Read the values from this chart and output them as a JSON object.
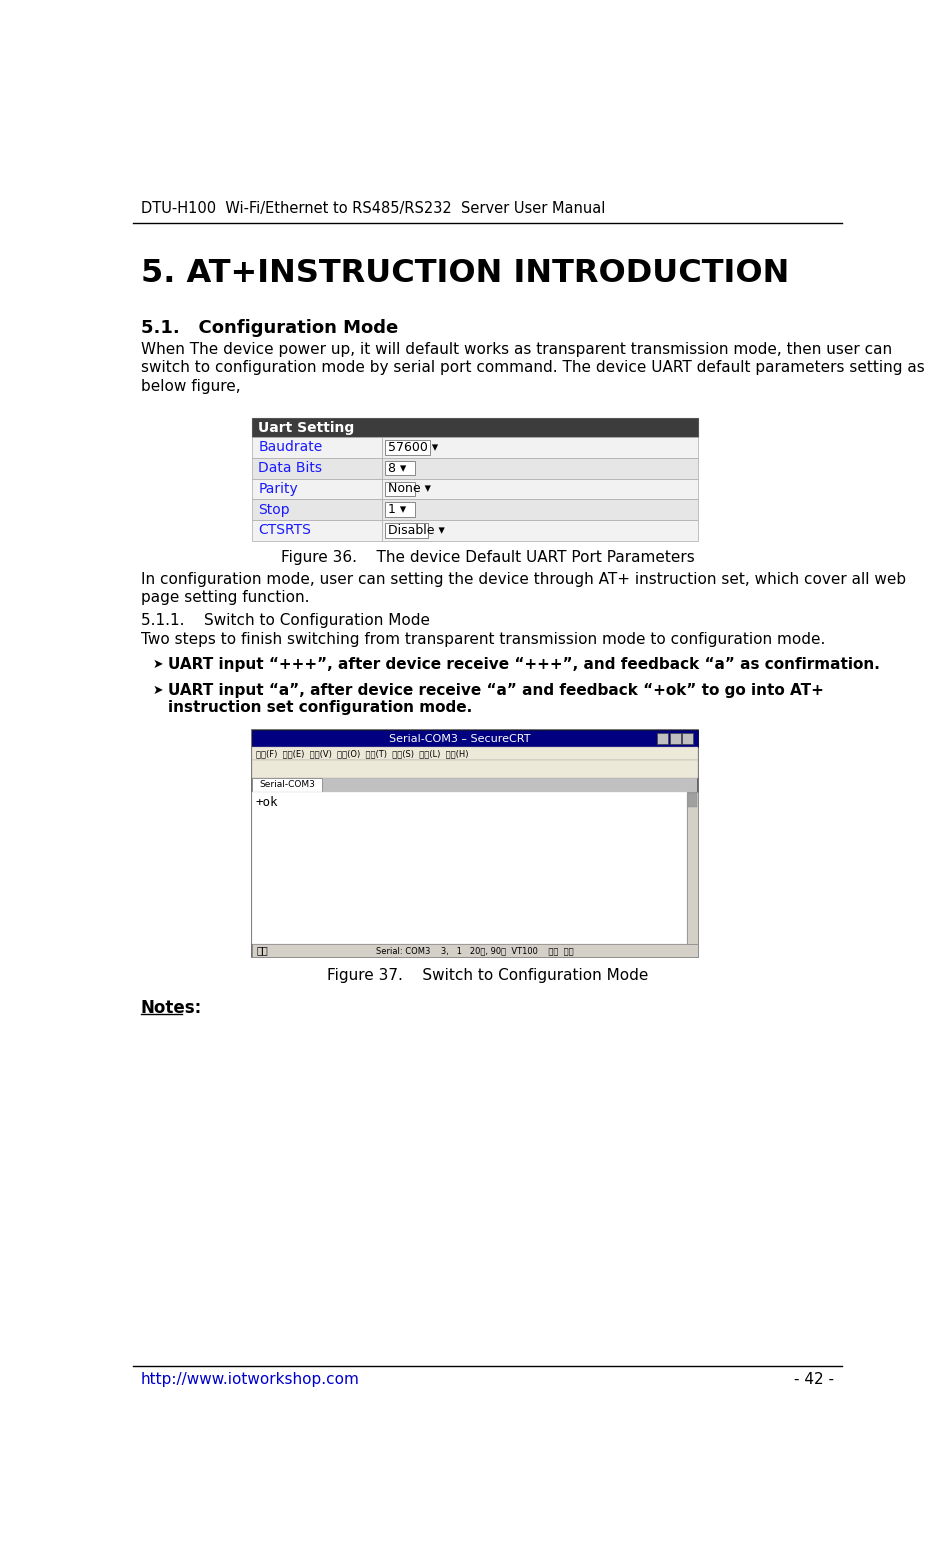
{
  "header_text": "DTU-H100  Wi-Fi/Ethernet to RS485/RS232  Server User Manual",
  "footer_url": "http://www.iotworkshop.com",
  "footer_page": "- 42 -",
  "chapter_title": "5. AT+INSTRUCTION INTRODUCTION",
  "section_title": "5.1.   Configuration Mode",
  "section_body_lines": [
    "When The device power up, it will default works as transparent transmission mode, then user can",
    "switch to configuration mode by serial port command. The device UART default parameters setting as",
    "below figure,"
  ],
  "fig36_caption": "Figure 36.    The device Default UART Port Parameters",
  "uart_table_header": "Uart Setting",
  "uart_table_rows": [
    [
      "Baudrate",
      "57600 ▾"
    ],
    [
      "Data Bits",
      "8 ▾"
    ],
    [
      "Parity",
      "None ▾"
    ],
    [
      "Stop",
      "1 ▾"
    ],
    [
      "CTSRTS",
      "Disable ▾"
    ]
  ],
  "inter_section_lines": [
    "In configuration mode, user can setting the device through AT+ instruction set, which cover all web",
    "page setting function."
  ],
  "subsection_title": "5.1.1.    Switch to Configuration Mode",
  "subsection_body": "Two steps to finish switching from transparent transmission mode to configuration mode.",
  "bullet1": "UART input “+++”, after device receive “+++”, and feedback “a” as confirmation.",
  "bullet2_line1": "UART input “a”, after device receive “a” and feedback “+ok” to go into AT+",
  "bullet2_line2": "instruction set configuration mode.",
  "fig37_caption": "Figure 37.    Switch to Configuration Mode",
  "notes_label": "Notes:",
  "bg_color": "#ffffff",
  "header_line_color": "#000000",
  "footer_line_color": "#000000",
  "text_color": "#000000",
  "blue_color": "#1a1aff",
  "link_color": "#0000cc",
  "table_header_bg": "#3c3c3c",
  "table_header_fg": "#ffffff",
  "table_row_bg1": "#f2f2f2",
  "table_row_bg2": "#e6e6e6",
  "table_border_color": "#aaaaaa",
  "screenshot_bg": "#c0c0c0",
  "screenshot_titlebar": "#000080",
  "screenshot_caption_text": "Serial-COM3 – SecureCRT",
  "screenshot_menu": "文件(F)  编辑(E)  查看(V)  选项(O)  传输(T)  脚本(S)  工具(L)  帮助(H)",
  "screenshot_term_text": "+ok",
  "screenshot_status_left": "就绪",
  "screenshot_status_right": "Serial: COM3    3,   1   20行, 90列  VT100    大写  数字"
}
